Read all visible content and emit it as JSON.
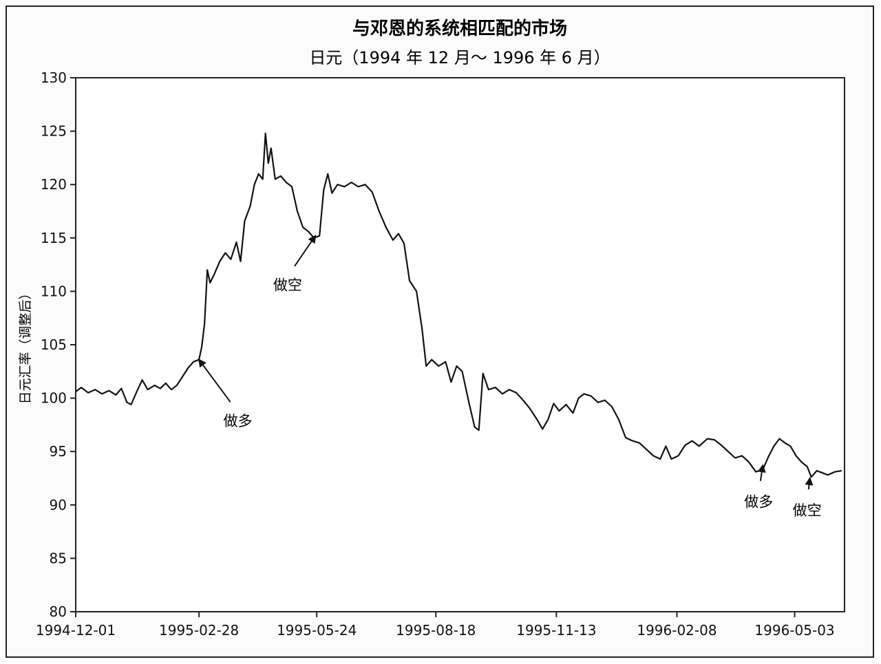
{
  "chart_data": {
    "type": "line",
    "title": "与邓恩的系统相匹配的市场",
    "subtitle": "日元（1994 年 12 月～ 1996 年 6 月）",
    "xlabel": "",
    "ylabel": "日元汇率（调整后）",
    "ylim": [
      80,
      130
    ],
    "yticks": [
      80,
      85,
      90,
      95,
      100,
      105,
      110,
      115,
      120,
      125,
      130
    ],
    "xlim": [
      "1994-12-01",
      "1996-06-08"
    ],
    "xticks": [
      "1994-12-01",
      "1995-02-28",
      "1995-05-24",
      "1995-08-18",
      "1995-11-13",
      "1996-02-08",
      "1996-05-03"
    ],
    "grid": false,
    "legend": "none",
    "line_color": "#111111",
    "series": [
      {
        "name": "",
        "points": [
          [
            "1994-12-01",
            100.6
          ],
          [
            "1994-12-05",
            101.0
          ],
          [
            "1994-12-10",
            100.5
          ],
          [
            "1994-12-15",
            100.8
          ],
          [
            "1994-12-20",
            100.4
          ],
          [
            "1994-12-25",
            100.7
          ],
          [
            "1994-12-30",
            100.3
          ],
          [
            "1995-01-03",
            100.9
          ],
          [
            "1995-01-07",
            99.6
          ],
          [
            "1995-01-10",
            99.4
          ],
          [
            "1995-01-14",
            100.6
          ],
          [
            "1995-01-18",
            101.7
          ],
          [
            "1995-01-22",
            100.8
          ],
          [
            "1995-01-27",
            101.2
          ],
          [
            "1995-01-31",
            100.9
          ],
          [
            "1995-02-04",
            101.4
          ],
          [
            "1995-02-08",
            100.8
          ],
          [
            "1995-02-12",
            101.2
          ],
          [
            "1995-02-16",
            102.0
          ],
          [
            "1995-02-20",
            102.8
          ],
          [
            "1995-02-24",
            103.4
          ],
          [
            "1995-02-28",
            103.6
          ],
          [
            "1995-03-02",
            104.8
          ],
          [
            "1995-03-04",
            107.0
          ],
          [
            "1995-03-06",
            112.0
          ],
          [
            "1995-03-08",
            110.8
          ],
          [
            "1995-03-11",
            111.6
          ],
          [
            "1995-03-15",
            112.8
          ],
          [
            "1995-03-19",
            113.6
          ],
          [
            "1995-03-23",
            113.0
          ],
          [
            "1995-03-27",
            114.6
          ],
          [
            "1995-03-30",
            112.8
          ],
          [
            "1995-04-02",
            116.6
          ],
          [
            "1995-04-06",
            118.0
          ],
          [
            "1995-04-09",
            120.0
          ],
          [
            "1995-04-12",
            121.0
          ],
          [
            "1995-04-15",
            120.5
          ],
          [
            "1995-04-17",
            124.8
          ],
          [
            "1995-04-19",
            122.0
          ],
          [
            "1995-04-21",
            123.4
          ],
          [
            "1995-04-24",
            120.5
          ],
          [
            "1995-04-28",
            120.8
          ],
          [
            "1995-05-02",
            120.2
          ],
          [
            "1995-05-06",
            119.8
          ],
          [
            "1995-05-10",
            117.5
          ],
          [
            "1995-05-14",
            116.0
          ],
          [
            "1995-05-18",
            115.6
          ],
          [
            "1995-05-22",
            115.0
          ],
          [
            "1995-05-26",
            115.2
          ],
          [
            "1995-05-29",
            119.5
          ],
          [
            "1995-06-01",
            121.0
          ],
          [
            "1995-06-04",
            119.2
          ],
          [
            "1995-06-08",
            120.0
          ],
          [
            "1995-06-13",
            119.8
          ],
          [
            "1995-06-18",
            120.2
          ],
          [
            "1995-06-23",
            119.8
          ],
          [
            "1995-06-28",
            120.0
          ],
          [
            "1995-07-03",
            119.3
          ],
          [
            "1995-07-08",
            117.5
          ],
          [
            "1995-07-13",
            116.0
          ],
          [
            "1995-07-18",
            114.8
          ],
          [
            "1995-07-22",
            115.4
          ],
          [
            "1995-07-26",
            114.5
          ],
          [
            "1995-07-30",
            111.0
          ],
          [
            "1995-08-04",
            110.0
          ],
          [
            "1995-08-08",
            106.5
          ],
          [
            "1995-08-11",
            103.0
          ],
          [
            "1995-08-15",
            103.6
          ],
          [
            "1995-08-20",
            103.0
          ],
          [
            "1995-08-25",
            103.4
          ],
          [
            "1995-08-29",
            101.5
          ],
          [
            "1995-09-02",
            103.0
          ],
          [
            "1995-09-06",
            102.5
          ],
          [
            "1995-09-11",
            99.5
          ],
          [
            "1995-09-15",
            97.3
          ],
          [
            "1995-09-18",
            97.0
          ],
          [
            "1995-09-21",
            102.3
          ],
          [
            "1995-09-25",
            100.8
          ],
          [
            "1995-09-30",
            101.0
          ],
          [
            "1995-10-05",
            100.4
          ],
          [
            "1995-10-10",
            100.8
          ],
          [
            "1995-10-15",
            100.5
          ],
          [
            "1995-10-20",
            99.8
          ],
          [
            "1995-10-25",
            99.0
          ],
          [
            "1995-10-30",
            98.0
          ],
          [
            "1995-11-03",
            97.1
          ],
          [
            "1995-11-07",
            98.0
          ],
          [
            "1995-11-11",
            99.5
          ],
          [
            "1995-11-15",
            98.8
          ],
          [
            "1995-11-20",
            99.4
          ],
          [
            "1995-11-25",
            98.6
          ],
          [
            "1995-11-29",
            100.0
          ],
          [
            "1995-12-03",
            100.4
          ],
          [
            "1995-12-08",
            100.2
          ],
          [
            "1995-12-13",
            99.6
          ],
          [
            "1995-12-18",
            99.8
          ],
          [
            "1995-12-23",
            99.2
          ],
          [
            "1995-12-28",
            98.0
          ],
          [
            "1996-01-02",
            96.3
          ],
          [
            "1996-01-07",
            96.0
          ],
          [
            "1996-01-12",
            95.8
          ],
          [
            "1996-01-17",
            95.2
          ],
          [
            "1996-01-22",
            94.6
          ],
          [
            "1996-01-27",
            94.3
          ],
          [
            "1996-01-31",
            95.5
          ],
          [
            "1996-02-04",
            94.3
          ],
          [
            "1996-02-09",
            94.6
          ],
          [
            "1996-02-14",
            95.6
          ],
          [
            "1996-02-19",
            96.0
          ],
          [
            "1996-02-24",
            95.5
          ],
          [
            "1996-03-01",
            96.2
          ],
          [
            "1996-03-06",
            96.1
          ],
          [
            "1996-03-11",
            95.6
          ],
          [
            "1996-03-16",
            95.0
          ],
          [
            "1996-03-21",
            94.4
          ],
          [
            "1996-03-26",
            94.6
          ],
          [
            "1996-03-31",
            94.0
          ],
          [
            "1996-04-05",
            93.1
          ],
          [
            "1996-04-10",
            93.3
          ],
          [
            "1996-04-14",
            94.5
          ],
          [
            "1996-04-18",
            95.5
          ],
          [
            "1996-04-22",
            96.2
          ],
          [
            "1996-04-26",
            95.8
          ],
          [
            "1996-04-30",
            95.5
          ],
          [
            "1996-05-04",
            94.6
          ],
          [
            "1996-05-08",
            94.0
          ],
          [
            "1996-05-12",
            93.6
          ],
          [
            "1996-05-15",
            92.6
          ],
          [
            "1996-05-19",
            93.2
          ],
          [
            "1996-05-23",
            93.0
          ],
          [
            "1996-05-27",
            92.8
          ],
          [
            "1996-06-01",
            93.1
          ],
          [
            "1996-06-06",
            93.2
          ]
        ]
      }
    ],
    "annotations": [
      {
        "text": "做多",
        "target": [
          "1995-02-28",
          103.6
        ],
        "label_at": [
          "1995-03-28",
          98.7
        ]
      },
      {
        "text": "做空",
        "target": [
          "1995-05-23",
          115.2
        ],
        "label_at": [
          "1995-05-03",
          111.4
        ]
      },
      {
        "text": "做多",
        "target": [
          "1996-04-10",
          93.7
        ],
        "label_at": [
          "1996-04-07",
          91.1
        ]
      },
      {
        "text": "做空",
        "target": [
          "1996-05-14",
          92.5
        ],
        "label_at": [
          "1996-05-12",
          90.3
        ]
      }
    ]
  }
}
